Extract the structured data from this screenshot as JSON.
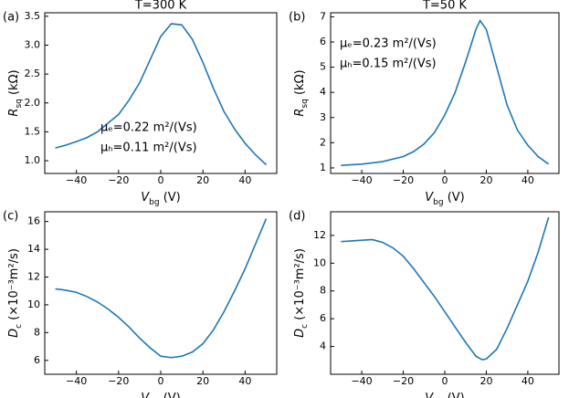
{
  "chart_data": [
    {
      "type": "line",
      "panel_label": "(a)",
      "title": "T=300 K",
      "xlabel": {
        "symbol": "V",
        "sub": "bg",
        "unit": " (V)"
      },
      "ylabel": {
        "symbol": "R",
        "sub": "sq",
        "unit": " (kΩ)"
      },
      "annotations": [
        "μₑ=0.22 m²/(Vs)",
        "μₕ=0.11 m²/(Vs)"
      ],
      "x": [
        -50,
        -45,
        -40,
        -35,
        -30,
        -25,
        -20,
        -15,
        -10,
        -5,
        0,
        5,
        10,
        15,
        20,
        25,
        30,
        35,
        40,
        45,
        50
      ],
      "series": [
        {
          "color": "#1f77b4",
          "values": [
            1.22,
            1.27,
            1.33,
            1.4,
            1.5,
            1.65,
            1.8,
            2.05,
            2.35,
            2.75,
            3.15,
            3.37,
            3.35,
            3.1,
            2.7,
            2.25,
            1.85,
            1.55,
            1.3,
            1.1,
            0.93
          ]
        }
      ],
      "xlim": [
        -55,
        55
      ],
      "ylim": [
        0.78,
        3.56
      ],
      "xticks": [
        {
          "value": -40,
          "label": "−40"
        },
        {
          "value": -20,
          "label": "−20"
        },
        0,
        20,
        40
      ],
      "yticks": [
        {
          "value": 1,
          "label": "1.0"
        },
        1.5,
        {
          "value": 2,
          "label": "2.0"
        },
        2.5,
        {
          "value": 3,
          "label": "3.0"
        },
        3.5
      ]
    },
    {
      "type": "line",
      "panel_label": "(b)",
      "title": "T=50 K",
      "xlabel": {
        "symbol": "V",
        "sub": "bg",
        "unit": " (V)"
      },
      "ylabel": {
        "symbol": "R",
        "sub": "sq",
        "unit": " (kΩ)"
      },
      "annotations": [
        "μₑ=0.23 m²/(Vs)",
        "μₕ=0.15 m²/(Vs)"
      ],
      "x": [
        -50,
        -40,
        -30,
        -20,
        -15,
        -10,
        -5,
        0,
        5,
        10,
        15,
        17,
        20,
        25,
        30,
        35,
        40,
        45,
        50
      ],
      "series": [
        {
          "color": "#1f77b4",
          "values": [
            1.1,
            1.15,
            1.25,
            1.45,
            1.65,
            1.95,
            2.4,
            3.1,
            4.0,
            5.2,
            6.5,
            6.85,
            6.5,
            5.0,
            3.5,
            2.5,
            1.9,
            1.45,
            1.15
          ]
        }
      ],
      "xlim": [
        -55,
        55
      ],
      "ylim": [
        0.78,
        7.16
      ],
      "xticks": [
        {
          "value": -40,
          "label": "−40"
        },
        {
          "value": -20,
          "label": "−20"
        },
        0,
        20,
        40
      ],
      "yticks": [
        1,
        2,
        3,
        4,
        5,
        6,
        7
      ]
    },
    {
      "type": "line",
      "panel_label": "(c)",
      "xlabel": {
        "symbol": "V",
        "sub": "bg",
        "unit": " (V)"
      },
      "ylabel": {
        "symbol": "D",
        "sub": "c",
        "unit": " (×10⁻³m²/s)"
      },
      "x": [
        -50,
        -45,
        -40,
        -35,
        -30,
        -25,
        -20,
        -15,
        -10,
        -5,
        0,
        5,
        10,
        15,
        20,
        25,
        30,
        35,
        40,
        45,
        50
      ],
      "series": [
        {
          "color": "#1f77b4",
          "values": [
            11.15,
            11.05,
            10.9,
            10.6,
            10.2,
            9.7,
            9.1,
            8.4,
            7.6,
            6.9,
            6.3,
            6.2,
            6.3,
            6.6,
            7.2,
            8.2,
            9.5,
            11,
            12.6,
            14.4,
            16.2
          ]
        }
      ],
      "xlim": [
        -55,
        55
      ],
      "ylim": [
        5.0,
        16.7
      ],
      "xticks": [
        {
          "value": -40,
          "label": "−40"
        },
        {
          "value": -20,
          "label": "−20"
        },
        0,
        20,
        40
      ],
      "yticks": [
        6,
        8,
        10,
        12,
        14,
        16
      ]
    },
    {
      "type": "line",
      "panel_label": "(d)",
      "xlabel": {
        "symbol": "V",
        "sub": "bg",
        "unit": " (V)"
      },
      "ylabel": {
        "symbol": "D",
        "sub": "c",
        "unit": " (×10⁻³m²/s)"
      },
      "x": [
        -50,
        -40,
        -35,
        -30,
        -25,
        -20,
        -15,
        -10,
        -5,
        0,
        5,
        10,
        15,
        18,
        20,
        25,
        30,
        35,
        40,
        45,
        50
      ],
      "series": [
        {
          "color": "#1f77b4",
          "values": [
            11.55,
            11.65,
            11.7,
            11.5,
            11.1,
            10.5,
            9.6,
            8.6,
            7.6,
            6.5,
            5.4,
            4.3,
            3.3,
            3.05,
            3.1,
            3.8,
            5.3,
            7.0,
            8.7,
            10.8,
            13.3
          ]
        }
      ],
      "xlim": [
        -55,
        55
      ],
      "ylim": [
        2.0,
        13.7
      ],
      "xticks": [
        {
          "value": -40,
          "label": "−40"
        },
        {
          "value": -20,
          "label": "−20"
        },
        0,
        20,
        40
      ],
      "yticks": [
        4,
        6,
        8,
        10,
        12
      ]
    }
  ]
}
